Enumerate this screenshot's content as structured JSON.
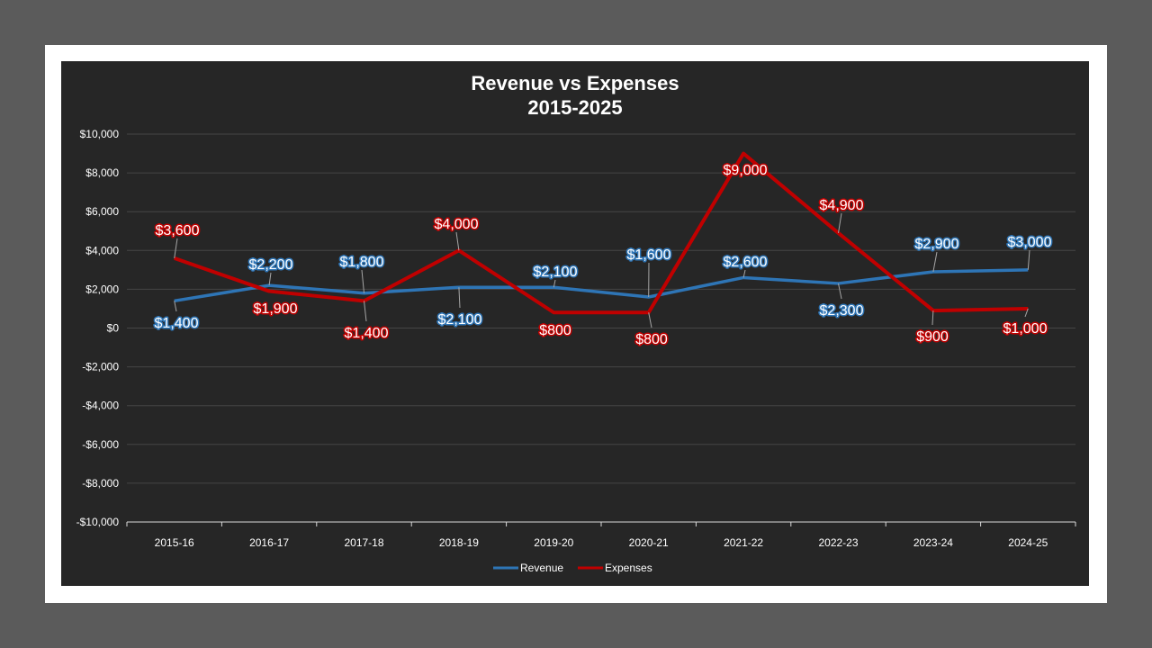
{
  "chart_data": {
    "type": "line",
    "title": "Revenue vs Expenses",
    "subtitle": "2015-2025",
    "categories": [
      "2015-16",
      "2016-17",
      "2017-18",
      "2018-19",
      "2019-20",
      "2020-21",
      "2021-22",
      "2022-23",
      "2023-24",
      "2024-25"
    ],
    "series": [
      {
        "name": "Revenue",
        "color": "#2e75b6",
        "values": [
          1400,
          2200,
          1800,
          2100,
          2100,
          1600,
          2600,
          2300,
          2900,
          3000
        ],
        "labels": [
          "$1,400",
          "$2,200",
          "$1,800",
          "$2,100",
          "$2,100",
          "$1,600",
          "$2,600",
          "$2,300",
          "$2,900",
          "$3,000"
        ]
      },
      {
        "name": "Expenses",
        "color": "#c00000",
        "values": [
          3600,
          1900,
          1400,
          4000,
          800,
          800,
          9000,
          4900,
          900,
          1000
        ],
        "labels": [
          "$3,600",
          "$1,900",
          "$1,400",
          "$4,000",
          "$800",
          "$800",
          "$9,000",
          "$4,900",
          "$900",
          "$1,000"
        ]
      }
    ],
    "yticks": [
      "$10,000",
      "$8,000",
      "$6,000",
      "$4,000",
      "$2,000",
      "$0",
      "-$2,000",
      "-$4,000",
      "-$6,000",
      "-$8,000",
      "-$10,000"
    ],
    "ylim": [
      -10000,
      10000
    ],
    "grid": true,
    "legend": "bottom"
  }
}
